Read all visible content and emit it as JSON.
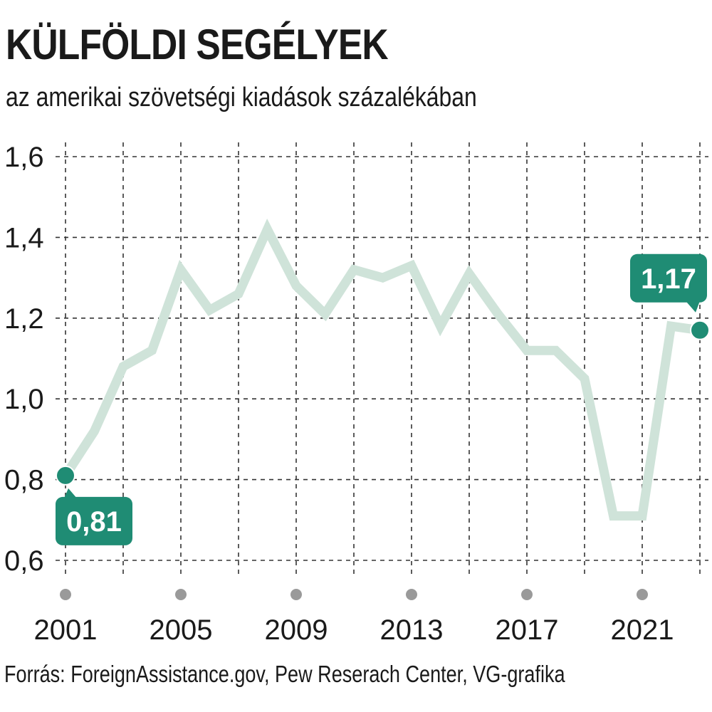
{
  "header": {
    "title": "KÜLFÖLDI SEGÉLYEK",
    "subtitle": "az amerikai szövetségi kiadások százalékában"
  },
  "footer": {
    "source": "Forrás: ForeignAssistance.gov, Pew Reserach Center, VG-grafika"
  },
  "colors": {
    "line": "#cfe3d9",
    "accent": "#1f8c74",
    "grid": "#333333",
    "year_dot": "#9a9a9a"
  },
  "chart_data": {
    "type": "line",
    "title": "KÜLFÖLDI SEGÉLYEK",
    "subtitle": "az amerikai szövetségi kiadások százalékában",
    "xlabel": "",
    "ylabel": "",
    "x": [
      2001,
      2002,
      2003,
      2004,
      2005,
      2006,
      2007,
      2008,
      2009,
      2010,
      2011,
      2012,
      2013,
      2014,
      2015,
      2016,
      2017,
      2018,
      2019,
      2020,
      2021,
      2022,
      2023
    ],
    "series": [
      {
        "name": "Külföldi segélyek (%)",
        "values": [
          0.81,
          0.92,
          1.08,
          1.12,
          1.32,
          1.22,
          1.26,
          1.42,
          1.28,
          1.21,
          1.32,
          1.3,
          1.33,
          1.18,
          1.31,
          1.21,
          1.12,
          1.12,
          1.05,
          0.71,
          0.71,
          1.18,
          1.17
        ]
      }
    ],
    "ylim": [
      0.6,
      1.6
    ],
    "yticks": [
      0.6,
      0.8,
      1.0,
      1.2,
      1.4,
      1.6
    ],
    "ytick_labels": [
      "0,6",
      "0,8",
      "1,0",
      "1,2",
      "1,4",
      "1,6"
    ],
    "xticks": [
      2001,
      2005,
      2009,
      2013,
      2017,
      2021
    ],
    "xtick_labels": [
      "2001",
      "2005",
      "2009",
      "2013",
      "2017",
      "2021"
    ],
    "grid": true,
    "annotations": [
      {
        "x": 2001,
        "y": 0.81,
        "label": "0,81",
        "placement": "below"
      },
      {
        "x": 2023,
        "y": 1.17,
        "label": "1,17",
        "placement": "above"
      }
    ]
  }
}
